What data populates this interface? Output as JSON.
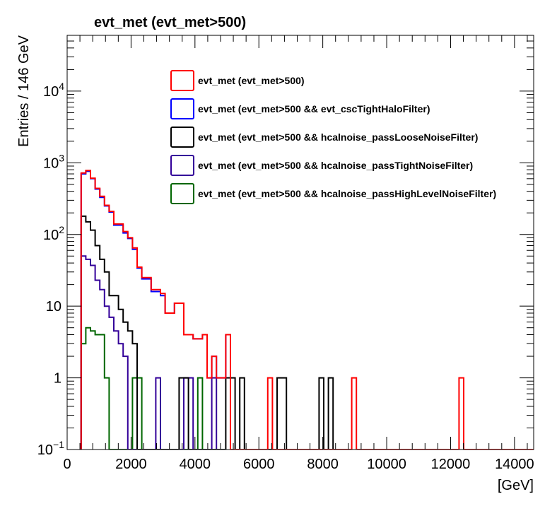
{
  "chart_data": {
    "type": "histogram-step",
    "title": "evt_met (evt_met>500)",
    "xlabel": "[GeV]",
    "ylabel": "Entries / 146 GeV",
    "xlim": [
      0,
      14600
    ],
    "ylim": [
      0.1,
      60000
    ],
    "yscale": "log",
    "bin_width": 146,
    "x_ticks": [
      0,
      2000,
      4000,
      6000,
      8000,
      10000,
      12000,
      14000
    ],
    "x_tick_labels": [
      "0",
      "2000",
      "4000",
      "6000",
      "8000",
      "10000",
      "12000",
      "14000"
    ],
    "y_ticks": [
      0.1,
      1,
      10,
      100,
      1000,
      10000
    ],
    "y_tick_labels": [
      {
        "base": "10",
        "exp": "−1"
      },
      {
        "base": "1",
        "exp": ""
      },
      {
        "base": "10",
        "exp": ""
      },
      {
        "base": "10",
        "exp": "2"
      },
      {
        "base": "10",
        "exp": "3"
      },
      {
        "base": "10",
        "exp": "4"
      }
    ],
    "grid": false,
    "legend_position": "top-right",
    "series": [
      {
        "name": "evt_met (evt_met>500)",
        "color": "#ff0000",
        "x_start": 438,
        "values": [
          720,
          780,
          610,
          440,
          340,
          255,
          210,
          140,
          140,
          110,
          90,
          65,
          35,
          25,
          25,
          17,
          17,
          15,
          8,
          8,
          11,
          11,
          4,
          4,
          3.5,
          3.5,
          4,
          1,
          2,
          1,
          1,
          4,
          0,
          0,
          0,
          0,
          0,
          0,
          0,
          0,
          1,
          0,
          0,
          0,
          0,
          0,
          0,
          0,
          0,
          0,
          0,
          0,
          0,
          0,
          0,
          0,
          0,
          0,
          1,
          0,
          0,
          0,
          0,
          0,
          0,
          0,
          0,
          0,
          0,
          0,
          0,
          0,
          0,
          0,
          0,
          0,
          0,
          0,
          0,
          0,
          0,
          1,
          0,
          0,
          0,
          0,
          0,
          0,
          0,
          0,
          0,
          0,
          0,
          0,
          0,
          0,
          0,
          0,
          0,
          0,
          0,
          0,
          0,
          0,
          0,
          0,
          0,
          0,
          0,
          0,
          0,
          0,
          0,
          0,
          0,
          0,
          0,
          0,
          0,
          0,
          0,
          0,
          0,
          0,
          0,
          0,
          0,
          0,
          0
        ]
      },
      {
        "name": "evt_met (evt_met>500 && evt_cscTightHaloFilter)",
        "color": "#0000ff",
        "x_start": 438,
        "values": [
          700,
          760,
          600,
          430,
          330,
          250,
          205,
          135,
          135,
          105,
          88,
          62,
          34,
          24,
          24,
          16,
          16,
          14,
          8,
          8,
          11,
          11,
          4,
          4,
          3.5,
          3.5,
          4,
          1,
          2,
          1,
          1,
          4
        ]
      },
      {
        "name": "evt_met (evt_met>500 && hcalnoise_passLooseNoiseFilter)",
        "color": "#000000",
        "x_start": 438,
        "values": [
          180,
          150,
          115,
          70,
          45,
          30,
          14,
          14,
          9,
          6,
          4.5,
          3,
          0,
          0,
          0,
          0,
          0,
          0,
          0,
          0,
          0,
          1,
          1,
          0,
          0,
          0,
          0,
          0,
          0,
          0,
          0,
          1,
          1,
          0,
          1,
          0,
          0,
          0,
          0,
          0,
          0,
          0,
          1,
          1,
          0,
          0,
          0,
          0,
          0,
          0,
          0,
          1,
          0,
          1
        ]
      },
      {
        "name": "evt_met (evt_met>500 && hcalnoise_passTightNoiseFilter)",
        "color": "#330099",
        "x_start": 438,
        "values": [
          50,
          45,
          37,
          23,
          17,
          10,
          7,
          4.5,
          3,
          2,
          0,
          0,
          0,
          0,
          0,
          0,
          1,
          0,
          0,
          0,
          0,
          0,
          1,
          1,
          0,
          0,
          0,
          0,
          1
        ]
      },
      {
        "name": "evt_met (evt_met>500 && hcalnoise_passHighLevelNoiseFilter)",
        "color": "#006600",
        "x_start": 438,
        "values": [
          3,
          5,
          4.5,
          4,
          4,
          1,
          0,
          0,
          0,
          0,
          0,
          1,
          1,
          0,
          0,
          0,
          0,
          0,
          0,
          0,
          0,
          0,
          0,
          0,
          0,
          1
        ]
      }
    ]
  }
}
